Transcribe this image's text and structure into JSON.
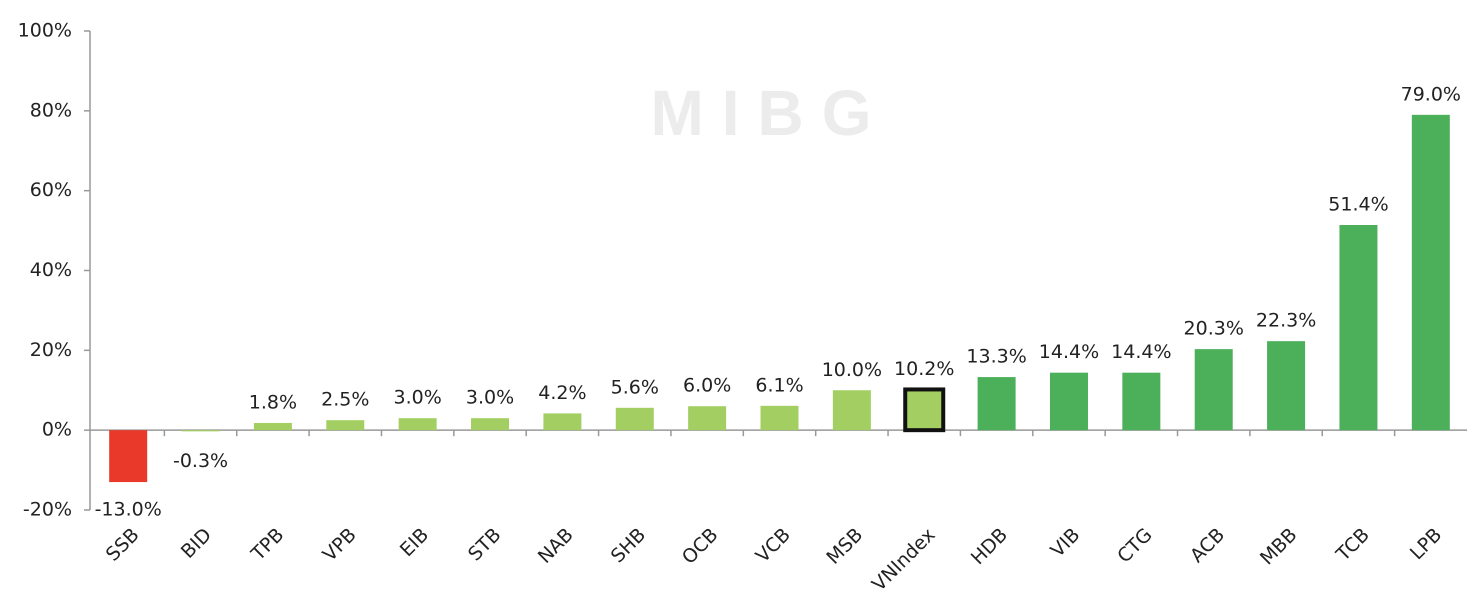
{
  "chart_data": {
    "type": "bar",
    "watermark": "MIBG",
    "categories": [
      "SSB",
      "BID",
      "TPB",
      "VPB",
      "EIB",
      "STB",
      "NAB",
      "SHB",
      "OCB",
      "VCB",
      "MSB",
      "VNIndex",
      "HDB",
      "VIB",
      "CTG",
      "ACB",
      "MBB",
      "TCB",
      "LPB"
    ],
    "values": [
      -13.0,
      -0.3,
      1.8,
      2.5,
      3.0,
      3.0,
      4.2,
      5.6,
      6.0,
      6.1,
      10.0,
      10.2,
      13.3,
      14.4,
      14.4,
      20.3,
      22.3,
      51.4,
      79.0
    ],
    "value_labels": [
      "-13.0%",
      "-0.3%",
      "1.8%",
      "2.5%",
      "3.0%",
      "3.0%",
      "4.2%",
      "5.6%",
      "6.0%",
      "6.1%",
      "10.0%",
      "10.2%",
      "13.3%",
      "14.4%",
      "14.4%",
      "20.3%",
      "22.3%",
      "51.4%",
      "79.0%"
    ],
    "colors": [
      "#e8392a",
      "#a3cf62",
      "#a3cf62",
      "#a3cf62",
      "#a3cf62",
      "#a3cf62",
      "#a3cf62",
      "#a3cf62",
      "#a3cf62",
      "#a3cf62",
      "#a3cf62",
      "#a3cf62",
      "#4caf5a",
      "#4caf5a",
      "#4caf5a",
      "#4caf5a",
      "#4caf5a",
      "#4caf5a",
      "#4caf5a"
    ],
    "edgecolors": [
      null,
      null,
      null,
      null,
      null,
      null,
      null,
      null,
      null,
      null,
      null,
      "#111111",
      null,
      null,
      null,
      null,
      null,
      null,
      null
    ],
    "ylim": [
      -20,
      100
    ],
    "yticks": [
      {
        "value": -20,
        "label": "-20%"
      },
      {
        "value": 0,
        "label": "0%"
      },
      {
        "value": 20,
        "label": "20%"
      },
      {
        "value": 40,
        "label": "40%"
      },
      {
        "value": 60,
        "label": "60%"
      },
      {
        "value": 80,
        "label": "80%"
      },
      {
        "value": 100,
        "label": "100%"
      }
    ]
  }
}
